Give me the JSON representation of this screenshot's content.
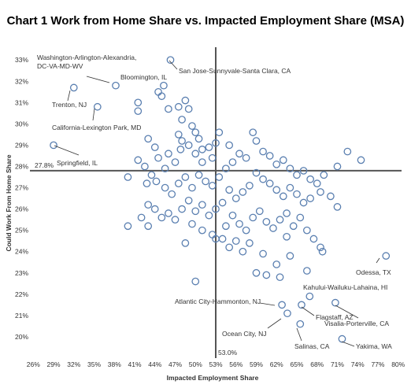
{
  "chart_data": {
    "type": "scatter",
    "title": "Chart 1 Work from Home Share vs. Impacted Employment Share (MSA)",
    "x_label": "Impacted Employment Share",
    "y_label": "Could Work From Home Share",
    "xlim": [
      25.5,
      80.5
    ],
    "ylim": [
      19,
      33.6
    ],
    "xticks": [
      {
        "value": 26,
        "label": "26%"
      },
      {
        "value": 29,
        "label": "29%"
      },
      {
        "value": 32,
        "label": "32%"
      },
      {
        "value": 35,
        "label": "35%"
      },
      {
        "value": 38,
        "label": "38%"
      },
      {
        "value": 41,
        "label": "41%"
      },
      {
        "value": 44,
        "label": "44%"
      },
      {
        "value": 47,
        "label": "47%"
      },
      {
        "value": 50,
        "label": "50%"
      },
      {
        "value": 53,
        "label": "53%"
      },
      {
        "value": 56,
        "label": "56%"
      },
      {
        "value": 59,
        "label": "59%"
      },
      {
        "value": 62,
        "label": "62%"
      },
      {
        "value": 65,
        "label": "65%"
      },
      {
        "value": 68,
        "label": "68%"
      },
      {
        "value": 71,
        "label": "71%"
      },
      {
        "value": 74,
        "label": "74%"
      },
      {
        "value": 77,
        "label": "77%"
      },
      {
        "value": 80,
        "label": "80%"
      }
    ],
    "yticks": [
      {
        "value": 20,
        "label": "20%"
      },
      {
        "value": 21,
        "label": "21%"
      },
      {
        "value": 22,
        "label": "22%"
      },
      {
        "value": 23,
        "label": "23%"
      },
      {
        "value": 24,
        "label": "24%"
      },
      {
        "value": 25,
        "label": "25%"
      },
      {
        "value": 26,
        "label": "26%"
      },
      {
        "value": 27,
        "label": "27%"
      },
      {
        "value": 28,
        "label": "28%"
      },
      {
        "value": 29,
        "label": "29%"
      },
      {
        "value": 30,
        "label": "30%"
      },
      {
        "value": 31,
        "label": "31%"
      },
      {
        "value": 32,
        "label": "32%"
      },
      {
        "value": 33,
        "label": "33%"
      }
    ],
    "ref_y": {
      "value": 27.8,
      "label": "27.8%"
    },
    "ref_x": {
      "value": 53.0,
      "label": "53.0%"
    },
    "color": "#5a7fb0",
    "labeled_points": [
      {
        "label": [
          "Washington-Arlington-Alexandria,",
          "DC-VA-MD-WV"
        ],
        "x": 38.2,
        "y": 31.8
      },
      {
        "label": "San Jose-Sunnyvale-Santa Clara, CA",
        "x": 46.3,
        "y": 33.0
      },
      {
        "label": "Bloomington, IL",
        "x": 45.3,
        "y": 31.8
      },
      {
        "label": "Trenton, NJ",
        "x": 32.0,
        "y": 31.7
      },
      {
        "label": "California-Lexington Park, MD",
        "x": 35.5,
        "y": 30.8
      },
      {
        "label": "Springfield, IL",
        "x": 29.0,
        "y": 29.0
      },
      {
        "label": "Odessa, TX",
        "x": 78.2,
        "y": 23.8
      },
      {
        "label": "Kahului-Wailuku-Lahaina, HI",
        "x": 66.9,
        "y": 21.9
      },
      {
        "label": "Atlantic City-Hammonton, NJ",
        "x": 62.8,
        "y": 21.5
      },
      {
        "label": "Flagstaff, AZ",
        "x": 65.7,
        "y": 21.5
      },
      {
        "label": "Visalia-Porterville, CA",
        "x": 70.7,
        "y": 21.6
      },
      {
        "label": "Ocean City, NJ",
        "x": 63.6,
        "y": 21.1
      },
      {
        "label": "Salinas, CA",
        "x": 65.5,
        "y": 20.6
      },
      {
        "label": "Yakima, WA",
        "x": 71.7,
        "y": 19.9
      }
    ],
    "x": [
      41.5,
      41.5,
      44.5,
      45,
      46,
      47.5,
      48.5,
      49,
      48,
      49.5,
      50,
      47.5,
      48,
      49,
      50.5,
      51,
      52,
      53,
      53.5,
      55,
      52.5,
      51,
      50,
      47.8,
      47,
      46,
      44.5,
      45.5,
      43,
      44,
      41.5,
      42.5,
      43.5,
      40,
      42.8,
      44.2,
      45.5,
      46.5,
      47.5,
      48.5,
      49.5,
      50.5,
      51.5,
      52.5,
      53.5,
      54.5,
      55.5,
      56.5,
      57.5,
      58.5,
      59,
      60,
      61,
      62,
      63,
      64,
      65,
      66,
      67,
      68,
      69,
      71,
      72.5,
      74.5,
      70,
      71,
      68.5,
      67,
      66,
      65,
      64,
      63,
      62,
      61,
      60,
      59,
      58,
      57,
      56,
      55,
      54,
      53,
      52,
      51,
      50,
      49,
      48,
      47,
      46,
      45,
      44,
      43,
      42,
      43,
      40,
      49.5,
      51,
      52.5,
      53,
      54.5,
      55.5,
      56.5,
      57.5,
      58.5,
      59.5,
      60.5,
      61.5,
      62.5,
      63.5,
      64.5,
      65.5,
      66.5,
      67.5,
      68.5,
      68.8,
      63.5,
      64,
      62,
      60,
      59,
      58,
      57,
      56,
      55,
      54,
      50,
      48.5,
      62.5,
      66.5,
      60.5
    ],
    "y": [
      31.0,
      30.6,
      31.5,
      31.3,
      30.7,
      30.8,
      31.1,
      30.7,
      30.2,
      29.9,
      29.6,
      29.5,
      29.2,
      29.0,
      29.3,
      28.8,
      28.9,
      29.1,
      29.6,
      29.0,
      28.4,
      28.2,
      28.6,
      28.8,
      28.2,
      28.6,
      28.4,
      27.9,
      29.3,
      28.9,
      28.3,
      28.0,
      27.6,
      27.5,
      27.2,
      27.3,
      27.0,
      26.7,
      27.2,
      27.5,
      27.0,
      27.6,
      27.3,
      27.1,
      27.5,
      27.9,
      28.2,
      28.6,
      28.4,
      29.6,
      29.2,
      28.7,
      28.5,
      28.1,
      28.3,
      27.9,
      27.6,
      27.8,
      27.4,
      27.2,
      27.6,
      28.0,
      28.7,
      28.3,
      26.6,
      26.1,
      26.8,
      26.5,
      26.3,
      26.7,
      27.0,
      26.6,
      26.9,
      27.2,
      27.4,
      27.7,
      27.1,
      26.8,
      26.5,
      26.9,
      26.3,
      26.0,
      25.7,
      26.2,
      25.9,
      26.4,
      26.0,
      25.5,
      25.8,
      25.6,
      26.0,
      26.2,
      25.6,
      25.2,
      25.2,
      25.3,
      25.0,
      24.8,
      24.6,
      25.2,
      25.7,
      25.3,
      25.0,
      25.6,
      25.9,
      25.4,
      25.1,
      25.5,
      25.8,
      25.2,
      25.6,
      25.0,
      24.6,
      24.2,
      24.0,
      24.7,
      23.8,
      23.4,
      23.9,
      23.0,
      24.4,
      24.0,
      24.5,
      24.2,
      24.6,
      22.6,
      24.4,
      22.8,
      23.1,
      22.9
    ]
  }
}
